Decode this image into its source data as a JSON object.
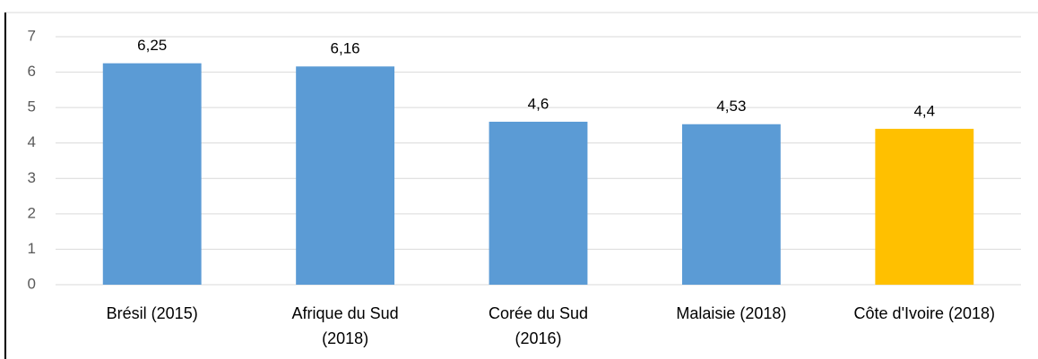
{
  "chart_data": {
    "type": "bar",
    "categories": [
      "Brésil (2015)",
      "Afrique du Sud\n(2018)",
      "Corée du Sud\n(2016)",
      "Malaisie (2018)",
      "Côte d'Ivoire (2018)"
    ],
    "values": [
      6.25,
      6.16,
      4.6,
      4.53,
      4.4
    ],
    "value_labels": [
      "6,25",
      "6,16",
      "4,6",
      "4,53",
      "4,4"
    ],
    "colors": [
      "#5b9bd5",
      "#5b9bd5",
      "#5b9bd5",
      "#5b9bd5",
      "#ffc000"
    ],
    "ylim": [
      0,
      7
    ],
    "yticks": [
      0,
      1,
      2,
      3,
      4,
      5,
      6,
      7
    ],
    "grid": true
  }
}
